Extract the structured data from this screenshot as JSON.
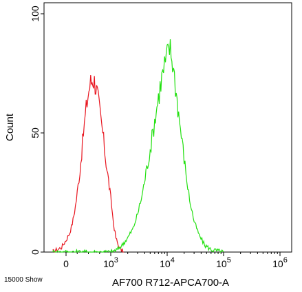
{
  "chart_data": {
    "type": "histogram",
    "xlabel": "AF700 R712-APCA700-A",
    "ylabel": "Count",
    "ylim": [
      0,
      100
    ],
    "y_ticks": [
      0,
      50,
      100
    ],
    "x_scale": "biexponential",
    "x_tick_labels": [
      {
        "value": 0,
        "label": "0"
      },
      {
        "value": 1000,
        "label": "10",
        "exp": "3"
      },
      {
        "value": 10000,
        "label": "10",
        "exp": "4"
      },
      {
        "value": 100000,
        "label": "10",
        "exp": "5"
      },
      {
        "value": 1000000,
        "label": "10",
        "exp": "6"
      }
    ],
    "grid": false,
    "series": [
      {
        "color": "#e8141e",
        "points": [
          [
            -300,
            0
          ],
          [
            -200,
            1
          ],
          [
            -100,
            2
          ],
          [
            0,
            5
          ],
          [
            80,
            8
          ],
          [
            140,
            12
          ],
          [
            190,
            17
          ],
          [
            230,
            22
          ],
          [
            270,
            28
          ],
          [
            310,
            34
          ],
          [
            350,
            42
          ],
          [
            390,
            50
          ],
          [
            430,
            57
          ],
          [
            470,
            63
          ],
          [
            510,
            68
          ],
          [
            550,
            71
          ],
          [
            600,
            73
          ],
          [
            650,
            71
          ],
          [
            700,
            66
          ],
          [
            760,
            58
          ],
          [
            820,
            50
          ],
          [
            880,
            40
          ],
          [
            950,
            30
          ],
          [
            1030,
            20
          ],
          [
            1120,
            12
          ],
          [
            1230,
            6
          ],
          [
            1350,
            3
          ],
          [
            1500,
            1
          ],
          [
            1700,
            0
          ]
        ]
      },
      {
        "color": "#22e010",
        "points": [
          [
            -300,
            0
          ],
          [
            200,
            0
          ],
          [
            600,
            0
          ],
          [
            1000,
            0
          ],
          [
            1300,
            1
          ],
          [
            1600,
            3
          ],
          [
            2000,
            6
          ],
          [
            2500,
            10
          ],
          [
            3000,
            16
          ],
          [
            3600,
            24
          ],
          [
            4200,
            33
          ],
          [
            5000,
            43
          ],
          [
            6000,
            55
          ],
          [
            7000,
            65
          ],
          [
            8000,
            73
          ],
          [
            9000,
            78
          ],
          [
            10000,
            82
          ],
          [
            11000,
            86
          ],
          [
            12500,
            80
          ],
          [
            14000,
            70
          ],
          [
            16000,
            58
          ],
          [
            18500,
            46
          ],
          [
            21500,
            33
          ],
          [
            25000,
            22
          ],
          [
            30000,
            13
          ],
          [
            37000,
            7
          ],
          [
            46000,
            3
          ],
          [
            60000,
            1
          ],
          [
            80000,
            0.5
          ],
          [
            100000,
            0
          ]
        ]
      }
    ]
  },
  "footer": {
    "events_label": "15000 Show"
  }
}
